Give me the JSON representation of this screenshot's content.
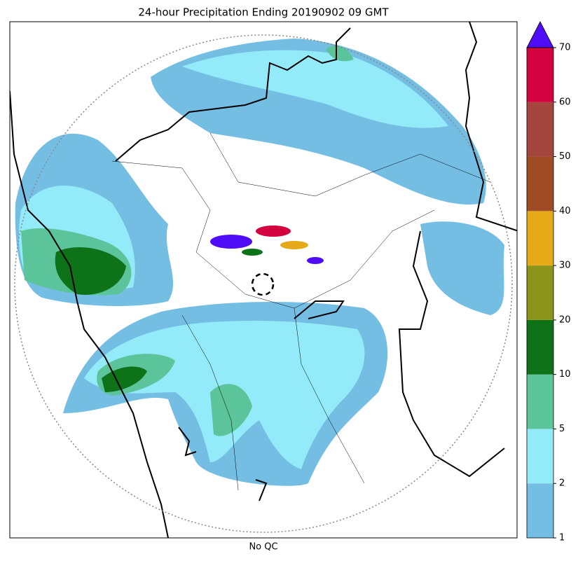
{
  "title": "24-hour Precipitation Ending 20190902 09 GMT",
  "xlabel": "No QC",
  "colorbar": {
    "levels": [
      1,
      2,
      5,
      10,
      20,
      30,
      40,
      50,
      60,
      70
    ],
    "colors": [
      "#74bde3",
      "#93eaf9",
      "#5bc49a",
      "#0e7219",
      "#8c931a",
      "#e6aa18",
      "#9f4c25",
      "#a4463e",
      "#d3013f"
    ],
    "extend_color": "#4e0cf7"
  }
}
